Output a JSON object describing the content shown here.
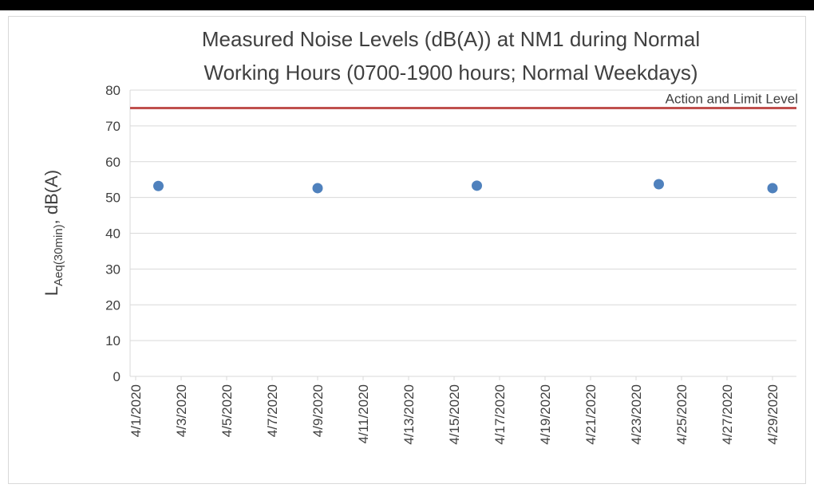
{
  "chart_data": {
    "type": "scatter",
    "title": [
      "Measured Noise Levels (dB(A)) at NM1 during Normal",
      "Working Hours (0700-1900 hours; Normal Weekdays)"
    ],
    "ylabel": {
      "main": "L",
      "subscript": "Aeq(30min)",
      "rest": ", dB(A)"
    },
    "series": [
      {
        "name": "NM1",
        "color": "#4f81bd",
        "x": [
          "4/2/2020",
          "4/9/2020",
          "4/16/2020",
          "4/24/2020",
          "4/29/2020"
        ],
        "values": [
          53.2,
          52.6,
          53.3,
          53.7,
          52.6
        ]
      }
    ],
    "reference_line": {
      "label": "Action and Limit Level",
      "value": 75,
      "color": "#c0504d"
    },
    "xlim": [
      "4/1/2020",
      "4/29/2020"
    ],
    "xticks": [
      "4/1/2020",
      "4/3/2020",
      "4/5/2020",
      "4/7/2020",
      "4/9/2020",
      "4/11/2020",
      "4/13/2020",
      "4/15/2020",
      "4/17/2020",
      "4/19/2020",
      "4/21/2020",
      "4/23/2020",
      "4/25/2020",
      "4/27/2020",
      "4/29/2020"
    ],
    "ylim": [
      0,
      80
    ],
    "yticks": [
      0,
      10,
      20,
      30,
      40,
      50,
      60,
      70,
      80
    ],
    "grid": true
  }
}
